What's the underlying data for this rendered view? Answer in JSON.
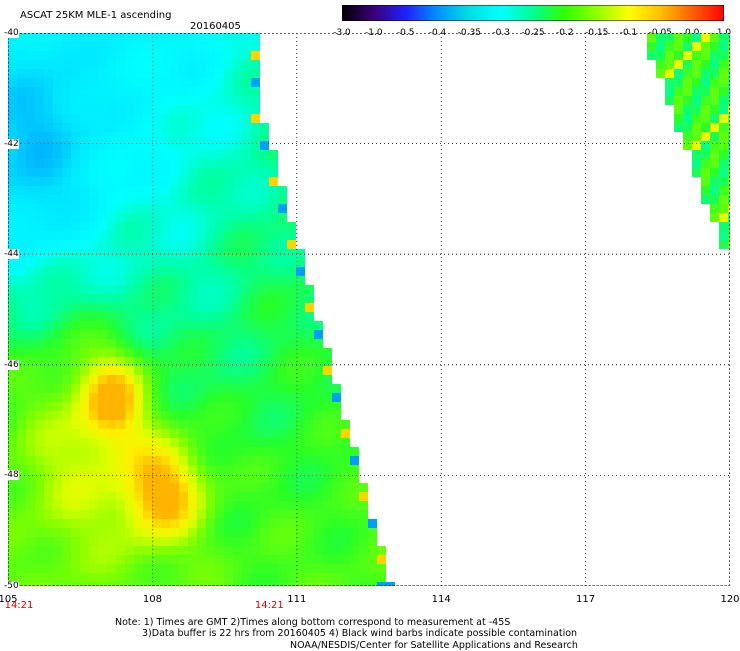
{
  "header": {
    "title": "ASCAT 25KM MLE-1 ascending",
    "date": "20160405"
  },
  "colorbar": {
    "labels": [
      "-3.0",
      "-1.0",
      "-0.5",
      "-0.4",
      "-0.35",
      "-0.3",
      "-0.25",
      "-0.2",
      "-0.15",
      "-0.1",
      "-0.05",
      "0.0",
      "1.0"
    ],
    "colors": [
      "#000000",
      "#3a0078",
      "#2020ff",
      "#0090ff",
      "#00e0e0",
      "#00ffff",
      "#00ff90",
      "#30ff00",
      "#90ff00",
      "#ffff00",
      "#ffc000",
      "#ff6000",
      "#ff0000"
    ]
  },
  "map": {
    "x_ticks": [
      "105",
      "108",
      "111",
      "114",
      "117",
      "120"
    ],
    "y_ticks": [
      "-40",
      "-42",
      "-44",
      "-46",
      "-48",
      "-50"
    ],
    "time_labels": [
      {
        "lon": 105,
        "text": "14:21"
      },
      {
        "lon": 110.2,
        "text": "14:21"
      }
    ],
    "lon_range": [
      105,
      120
    ],
    "lat_range": [
      -40,
      -50
    ]
  },
  "footer": {
    "line1": "Note: 1) Times are GMT 2)Times along bottom correspond to measurement at -45S",
    "line2": "3)Data buffer is 22 hrs from 20160405 4) Black wind barbs indicate possible contamination",
    "line3": "NOAA/NESDIS/Center for Satellite Applications and Research"
  }
}
